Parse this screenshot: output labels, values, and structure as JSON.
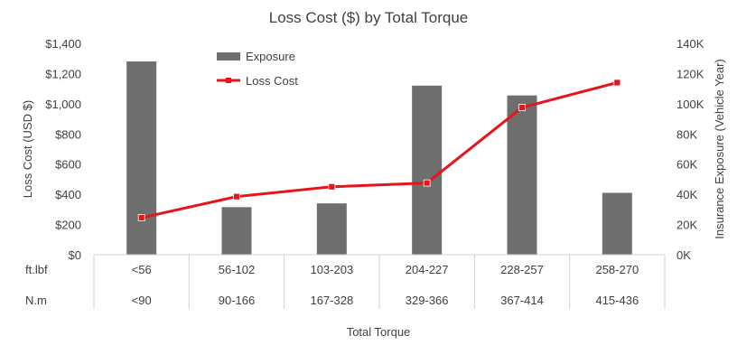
{
  "chart_data": {
    "type": "bar+line",
    "title": "Loss Cost ($) by Total Torque",
    "xlabel": "Total Torque",
    "ylabel_left": "Loss Cost (USD $)",
    "ylabel_right": "Insurance Exposure (Vehicle Year)",
    "ylim_left": [
      0,
      1400
    ],
    "ylim_right": [
      0,
      140000
    ],
    "left_ticks": [
      "$0",
      "$200",
      "$400",
      "$600",
      "$800",
      "$1,000",
      "$1,200",
      "$1,400"
    ],
    "right_ticks": [
      "0K",
      "20K",
      "40K",
      "60K",
      "80K",
      "100K",
      "120K",
      "140K"
    ],
    "grid": false,
    "legend_position": "top-center",
    "row_labels": [
      "ft.lbf",
      "N.m"
    ],
    "categories_ftlbf": [
      "<56",
      "56-102",
      "103-203",
      "204-227",
      "228-257",
      "258-270"
    ],
    "categories_nm": [
      "<90",
      "90-166",
      "167-328",
      "329-366",
      "367-414",
      "415-436"
    ],
    "series": [
      {
        "name": "Exposure",
        "type": "bar",
        "axis": "right",
        "color": "#6e6e6e",
        "values": [
          128000,
          31500,
          34000,
          112000,
          105500,
          41000
        ]
      },
      {
        "name": "Loss Cost",
        "type": "line",
        "axis": "left",
        "color": "#e8141c",
        "values": [
          245,
          385,
          450,
          475,
          975,
          1140
        ]
      }
    ]
  }
}
